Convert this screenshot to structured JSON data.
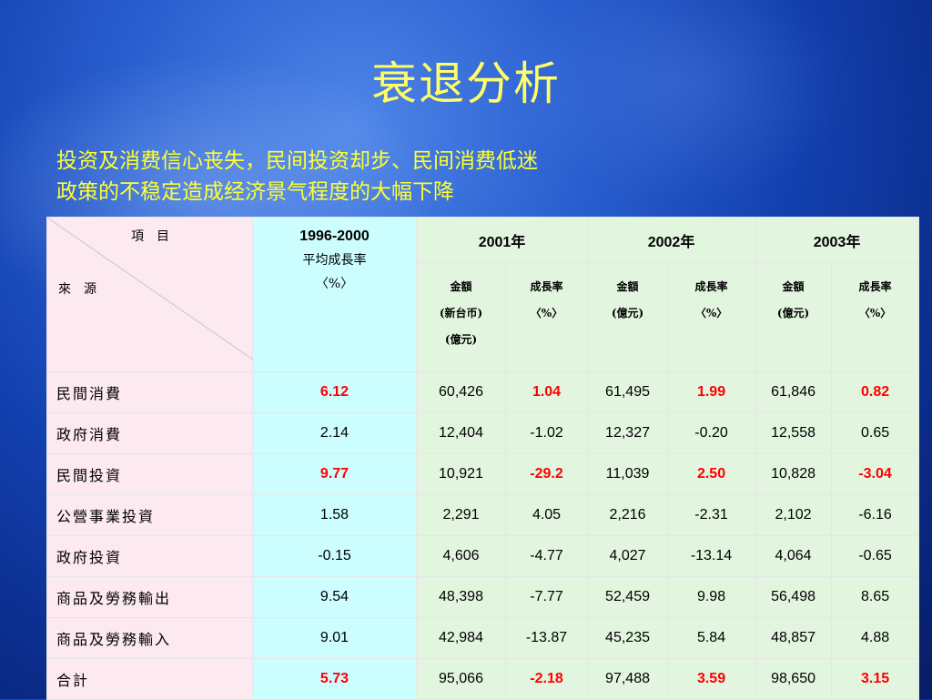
{
  "title": "衰退分析",
  "subtitle": {
    "line1": "投资及消费信心丧失，民间投资却步、民间消费低迷",
    "line2": "政策的不稳定造成经济景气程度的大幅下降"
  },
  "table": {
    "corner": {
      "item": "項　目",
      "source": "來　源"
    },
    "avg_header": {
      "years": "1996-2000",
      "label": "平均成長率",
      "unit": "〈%〉"
    },
    "years": [
      {
        "year": "2001",
        "suffix": "年"
      },
      {
        "year": "2002",
        "suffix": "年"
      },
      {
        "year": "2003",
        "suffix": "年"
      }
    ],
    "subheaders": {
      "amount_2001": {
        "line1": "金額",
        "line2": "(新台币)",
        "line3": "(億元)"
      },
      "rate": {
        "line1": "成長率",
        "line2": "〈%〉"
      },
      "amount": {
        "line1": "金額",
        "line2": "(億元)"
      }
    },
    "rows": [
      {
        "label": "民間消費",
        "avg": "6.12",
        "a2001": "60,426",
        "r2001": "1.04",
        "a2002": "61,495",
        "r2002": "1.99",
        "a2003": "61,846",
        "r2003": "0.82"
      },
      {
        "label": "政府消費",
        "avg": "2.14",
        "a2001": "12,404",
        "r2001": "-1.02",
        "a2002": "12,327",
        "r2002": "-0.20",
        "a2003": "12,558",
        "r2003": "0.65"
      },
      {
        "label": "民間投資",
        "avg": "9.77",
        "a2001": "10,921",
        "r2001": "-29.2",
        "a2002": "11,039",
        "r2002": "2.50",
        "a2003": "10,828",
        "r2003": "-3.04"
      },
      {
        "label": "公營事業投資",
        "avg": "1.58",
        "a2001": "2,291",
        "r2001": "4.05",
        "a2002": "2,216",
        "r2002": "-2.31",
        "a2003": "2,102",
        "r2003": "-6.16"
      },
      {
        "label": "政府投資",
        "avg": "-0.15",
        "a2001": "4,606",
        "r2001": "-4.77",
        "a2002": "4,027",
        "r2002": "-13.14",
        "a2003": "4,064",
        "r2003": "-0.65"
      },
      {
        "label": "商品及勞務輸出",
        "avg": "9.54",
        "a2001": "48,398",
        "r2001": "-7.77",
        "a2002": "52,459",
        "r2002": "9.98",
        "a2003": "56,498",
        "r2003": "8.65"
      },
      {
        "label": "商品及勞務輸入",
        "avg": "9.01",
        "a2001": "42,984",
        "r2001": "-13.87",
        "a2002": "45,235",
        "r2002": "5.84",
        "a2003": "48,857",
        "r2003": "4.88"
      },
      {
        "label": "合計",
        "avg": "5.73",
        "a2001": "95,066",
        "r2001": "-2.18",
        "a2002": "97,488",
        "r2002": "3.59",
        "a2003": "98,650",
        "r2003": "3.15"
      }
    ],
    "highlight_color": "#ff0000"
  }
}
